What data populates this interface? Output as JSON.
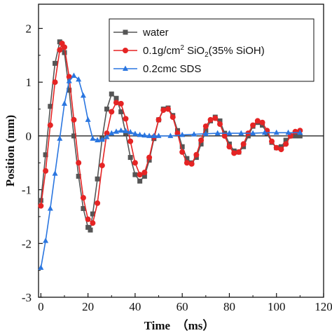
{
  "chart_data": {
    "type": "line",
    "xlabel": "Time  （ms）",
    "ylabel": "Position (mm)",
    "xlim": [
      -1,
      120
    ],
    "ylim": [
      -3,
      2.45
    ],
    "xticks": [
      0,
      20,
      40,
      60,
      80,
      100,
      120
    ],
    "yticks": [
      -3,
      -2,
      -1,
      0,
      1,
      2
    ],
    "grid": false,
    "legend_position": "top-right",
    "series": [
      {
        "name": "water",
        "color": "#555555",
        "marker": "square",
        "x": [
          0,
          2,
          4,
          6,
          8,
          10,
          12,
          14,
          16,
          18,
          20,
          21,
          22,
          24,
          26,
          28,
          30,
          32,
          34,
          36,
          38,
          40,
          42,
          44,
          46,
          48,
          50,
          52,
          54,
          56,
          58,
          60,
          62,
          64,
          66,
          68,
          70,
          72,
          74,
          76,
          78,
          80,
          82,
          84,
          86,
          88,
          90,
          92,
          94,
          96,
          98,
          100,
          102,
          104,
          106,
          108,
          110
        ],
        "y": [
          -1.2,
          -0.35,
          0.55,
          1.35,
          1.75,
          1.55,
          0.85,
          0.0,
          -0.75,
          -1.35,
          -1.7,
          -1.75,
          -1.45,
          -0.8,
          -0.05,
          0.5,
          0.78,
          0.7,
          0.45,
          0.05,
          -0.4,
          -0.72,
          -0.84,
          -0.75,
          -0.45,
          -0.05,
          0.3,
          0.5,
          0.52,
          0.38,
          0.1,
          -0.2,
          -0.42,
          -0.5,
          -0.4,
          -0.15,
          0.1,
          0.28,
          0.35,
          0.28,
          0.05,
          -0.15,
          -0.28,
          -0.3,
          -0.2,
          0.0,
          0.18,
          0.25,
          0.2,
          0.05,
          -0.12,
          -0.22,
          -0.2,
          -0.08,
          0.0,
          0.0,
          0.0
        ]
      },
      {
        "name": "0.1g/cm² SiO₂(35% SiOH)",
        "color": "#e52424",
        "marker": "circle",
        "x": [
          0,
          2,
          4,
          6,
          8,
          9,
          10,
          12,
          14,
          16,
          18,
          20,
          22,
          24,
          26,
          28,
          30,
          32,
          34,
          36,
          38,
          40,
          42,
          44,
          46,
          48,
          50,
          52,
          54,
          56,
          58,
          60,
          62,
          64,
          66,
          68,
          70,
          72,
          74,
          76,
          78,
          80,
          82,
          84,
          86,
          88,
          90,
          92,
          94,
          96,
          98,
          100,
          102,
          104,
          106,
          108,
          110
        ],
        "y": [
          -1.3,
          -0.65,
          0.2,
          1.0,
          1.6,
          1.72,
          1.65,
          1.1,
          0.3,
          -0.5,
          -1.15,
          -1.55,
          -1.62,
          -1.25,
          -0.55,
          0.05,
          0.45,
          0.62,
          0.6,
          0.32,
          -0.1,
          -0.5,
          -0.72,
          -0.68,
          -0.4,
          -0.02,
          0.3,
          0.48,
          0.5,
          0.35,
          0.05,
          -0.3,
          -0.5,
          -0.52,
          -0.35,
          -0.08,
          0.18,
          0.3,
          0.33,
          0.22,
          0.0,
          -0.2,
          -0.32,
          -0.3,
          -0.15,
          0.05,
          0.2,
          0.28,
          0.25,
          0.1,
          -0.1,
          -0.22,
          -0.25,
          -0.15,
          0.0,
          0.08,
          0.1
        ]
      },
      {
        "name": "0.2cmc SDS",
        "color": "#2a76e0",
        "marker": "triangle",
        "x": [
          0,
          2,
          4,
          6,
          8,
          10,
          12,
          14,
          16,
          18,
          20,
          22,
          24,
          26,
          28,
          30,
          32,
          34,
          36,
          38,
          40,
          42,
          44,
          46,
          48,
          50,
          55,
          60,
          65,
          70,
          75,
          80,
          85,
          90,
          95,
          100,
          105,
          110
        ],
        "y": [
          -2.45,
          -1.95,
          -1.35,
          -0.7,
          -0.05,
          0.6,
          1.02,
          1.12,
          1.05,
          0.75,
          0.3,
          -0.05,
          -0.08,
          -0.07,
          -0.02,
          0.05,
          0.08,
          0.1,
          0.09,
          0.07,
          0.04,
          0.02,
          0.01,
          0.0,
          0.0,
          0.0,
          0.0,
          0.02,
          0.03,
          0.04,
          0.05,
          0.05,
          0.05,
          0.05,
          0.06,
          0.06,
          0.06,
          0.06
        ]
      }
    ],
    "legend_labels": [
      {
        "text": "water"
      },
      {
        "parts": [
          "0.1g/cm",
          "2",
          " SiO",
          "2",
          "(35% SiOH)"
        ]
      },
      {
        "text": "0.2cmc SDS"
      }
    ]
  }
}
